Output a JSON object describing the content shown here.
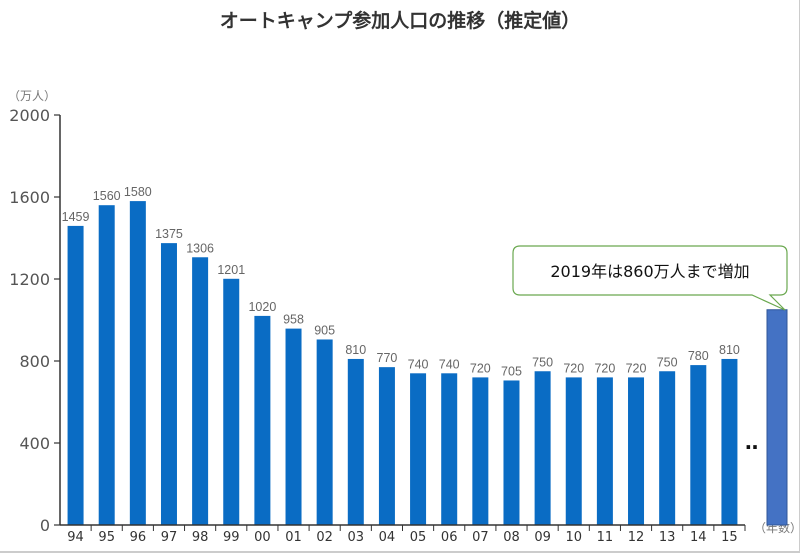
{
  "chart_data": {
    "type": "bar",
    "title": "オートキャンプ参加人口の推移（推定値）",
    "ylabel": "（万人）",
    "xlabel": "（年数）",
    "ylim": [
      0,
      2000
    ],
    "yticks": [
      "0",
      "400",
      "800",
      "1200",
      "1600",
      "2000"
    ],
    "grid": false,
    "categories": [
      "94",
      "95",
      "96",
      "97",
      "98",
      "99",
      "00",
      "01",
      "02",
      "03",
      "04",
      "05",
      "06",
      "07",
      "08",
      "09",
      "10",
      "11",
      "12",
      "13",
      "14",
      "15"
    ],
    "values": [
      1459,
      1560,
      1580,
      1375,
      1306,
      1201,
      1020,
      958,
      905,
      810,
      770,
      740,
      740,
      720,
      705,
      750,
      720,
      720,
      720,
      750,
      780,
      810
    ],
    "extra_bar": {
      "value": 1050,
      "color": "#4472c4"
    },
    "annotation": "2019年は860万人まで増加",
    "ellipsis": "‥",
    "bar_color": "#0a6cc4"
  }
}
